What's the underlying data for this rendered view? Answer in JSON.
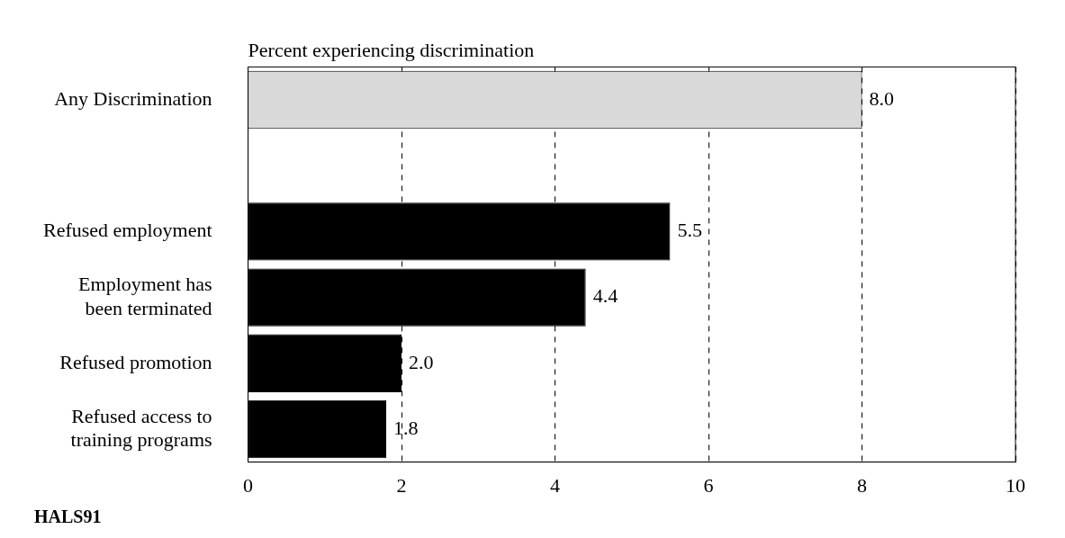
{
  "chart_data": {
    "type": "bar",
    "orientation": "horizontal",
    "title": "Percent experiencing discrimination",
    "categories": [
      "Any Discrimination",
      null,
      "Refused employment",
      "Employment has been terminated",
      "Refused promotion",
      "Refused access to training programs"
    ],
    "values": [
      8.0,
      null,
      5.5,
      4.4,
      2.0,
      1.8
    ],
    "colors": [
      "#d9d9d9",
      "#000000",
      "#000000",
      "#000000",
      "#000000",
      "#000000"
    ],
    "value_labels": [
      "8.0",
      null,
      "5.5",
      "4.4",
      "2.0",
      "1.8"
    ],
    "xlim": [
      0,
      10
    ],
    "xticks": [
      0,
      2,
      4,
      6,
      8,
      10
    ],
    "grid": "x",
    "annotations": [
      "HALS91"
    ]
  }
}
